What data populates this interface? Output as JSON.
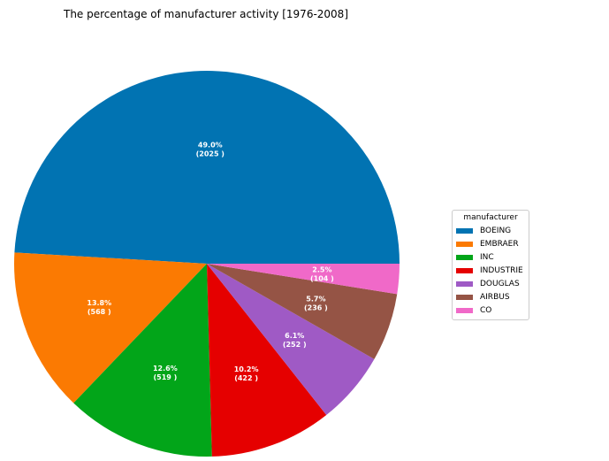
{
  "chart_data": {
    "type": "pie",
    "title": "The percentage of manufacturer activity [1976-2008]",
    "legend_title": "manufacturer",
    "legend_position": "right",
    "slices": [
      {
        "name": "BOEING",
        "value": 2025,
        "percent": "49.0%",
        "count_label": "(2025 )",
        "color": "#0173b2"
      },
      {
        "name": "EMBRAER",
        "value": 568,
        "percent": "13.8%",
        "count_label": "(568 )",
        "color": "#fb7a02"
      },
      {
        "name": "INC",
        "value": 519,
        "percent": "12.6%",
        "count_label": "(519 )",
        "color": "#02a519"
      },
      {
        "name": "INDUSTRIE",
        "value": 422,
        "percent": "10.2%",
        "count_label": "(422 )",
        "color": "#e50000"
      },
      {
        "name": "DOUGLAS",
        "value": 252,
        "percent": "6.1%",
        "count_label": "(252 )",
        "color": "#9f5ac5"
      },
      {
        "name": "AIRBUS",
        "value": 236,
        "percent": "5.7%",
        "count_label": "(236 )",
        "color": "#955445"
      },
      {
        "name": "CO",
        "value": 104,
        "percent": "2.5%",
        "count_label": "(104 )",
        "color": "#f069c8"
      }
    ]
  }
}
